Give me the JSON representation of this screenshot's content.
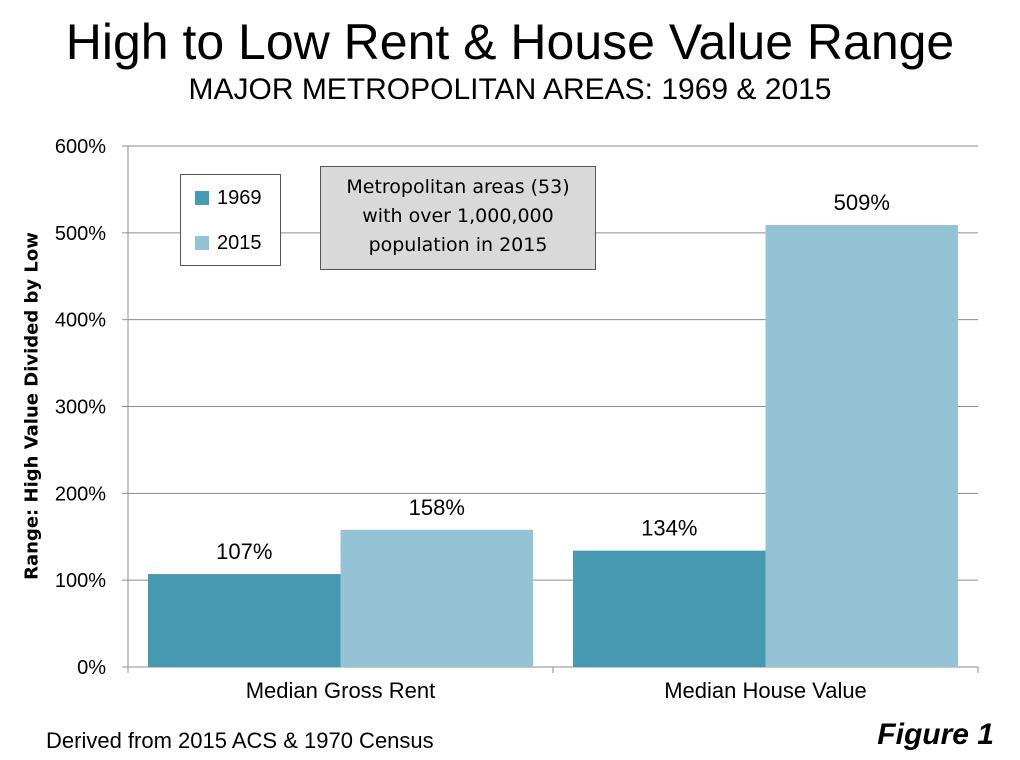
{
  "header": {
    "title": "High to Low Rent & House Value Range",
    "subtitle": "MAJOR METROPOLITAN AREAS: 1969 & 2015"
  },
  "annotation": "Metropolitan areas  (53)\nwith over 1,000,000\n population in 2015",
  "footer": {
    "source": "Derived from 2015 ACS & 1970 Census",
    "figure_label": "Figure 1"
  },
  "chart_data": {
    "type": "bar",
    "title": "High to Low Rent & House Value Range",
    "subtitle": "MAJOR METROPOLITAN AREAS: 1969 & 2015",
    "xlabel": "",
    "ylabel": "Range: High Value  Divided by Low",
    "ylim": [
      0,
      600
    ],
    "yticks": [
      0,
      100,
      200,
      300,
      400,
      500,
      600
    ],
    "ytick_labels": [
      "0%",
      "100%",
      "200%",
      "300%",
      "400%",
      "500%",
      "600%"
    ],
    "grid": true,
    "legend_position": "top-left",
    "categories": [
      "Median Gross Rent",
      "Median House Value"
    ],
    "series": [
      {
        "name": "1969",
        "color": "#4599b0",
        "values": [
          107,
          134
        ],
        "labels": [
          "107%",
          "134%"
        ]
      },
      {
        "name": "2015",
        "color": "#93c3d5",
        "values": [
          158,
          509
        ],
        "labels": [
          "158%",
          "509%"
        ]
      }
    ]
  }
}
